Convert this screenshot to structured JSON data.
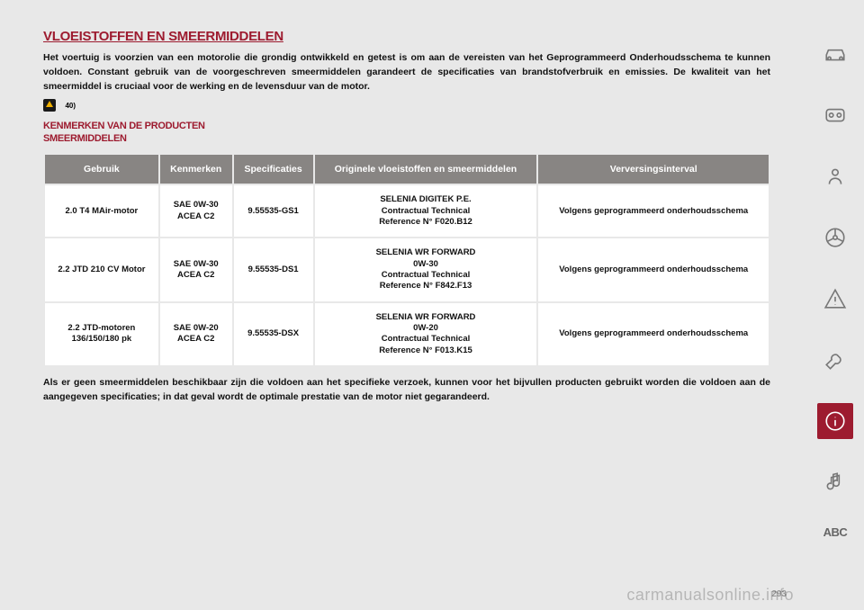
{
  "title": "VLOEISTOFFEN EN SMEERMIDDELEN",
  "intro": "Het voertuig is voorzien van een motorolie die grondig ontwikkeld en getest is om aan de vereisten van het Geprogrammeerd Onderhoudsschema te kunnen voldoen. Constant gebruik van de voorgeschreven smeermiddelen garandeert de specificaties van brandstofverbruik en emissies. De kwaliteit van het smeermiddel is cruciaal voor de werking en de levensduur van de motor.",
  "warn_num": "40)",
  "sub1": "KENMERKEN VAN DE PRODUCTEN",
  "sub2": "SMEERMIDDELEN",
  "headers": [
    "Gebruik",
    "Kenmerken",
    "Specificaties",
    "Originele vloeistoffen en smeermiddelen",
    "Verversingsinterval"
  ],
  "rows": [
    [
      "2.0 T4 MAir-motor",
      "SAE 0W-30\nACEA C2",
      "9.55535-GS1",
      "SELENIA DIGITEK P.E.\nContractual Technical\nReference N° F020.B12",
      "Volgens geprogrammeerd onderhoudsschema"
    ],
    [
      "2.2 JTD 210 CV Motor",
      "SAE 0W-30\nACEA C2",
      "9.55535-DS1",
      "SELENIA WR FORWARD\n0W-30\nContractual Technical\nReference N° F842.F13",
      "Volgens geprogrammeerd onderhoudsschema"
    ],
    [
      "2.2 JTD-motoren\n136/150/180 pk",
      "SAE 0W-20\nACEA C2",
      "9.55535-DSX",
      "SELENIA WR FORWARD\n0W-20\nContractual Technical\nReference N° F013.K15",
      "Volgens geprogrammeerd onderhoudsschema"
    ]
  ],
  "footnote": "Als er geen smeermiddelen beschikbaar zijn die voldoen aan het specifieke verzoek, kunnen voor het bijvullen producten gebruikt worden die voldoen aan de aangegeven specificaties; in dat geval wordt de optimale prestatie van de motor niet gegarandeerd.",
  "pagenum": "293",
  "watermark": "carmanualsonline.info"
}
